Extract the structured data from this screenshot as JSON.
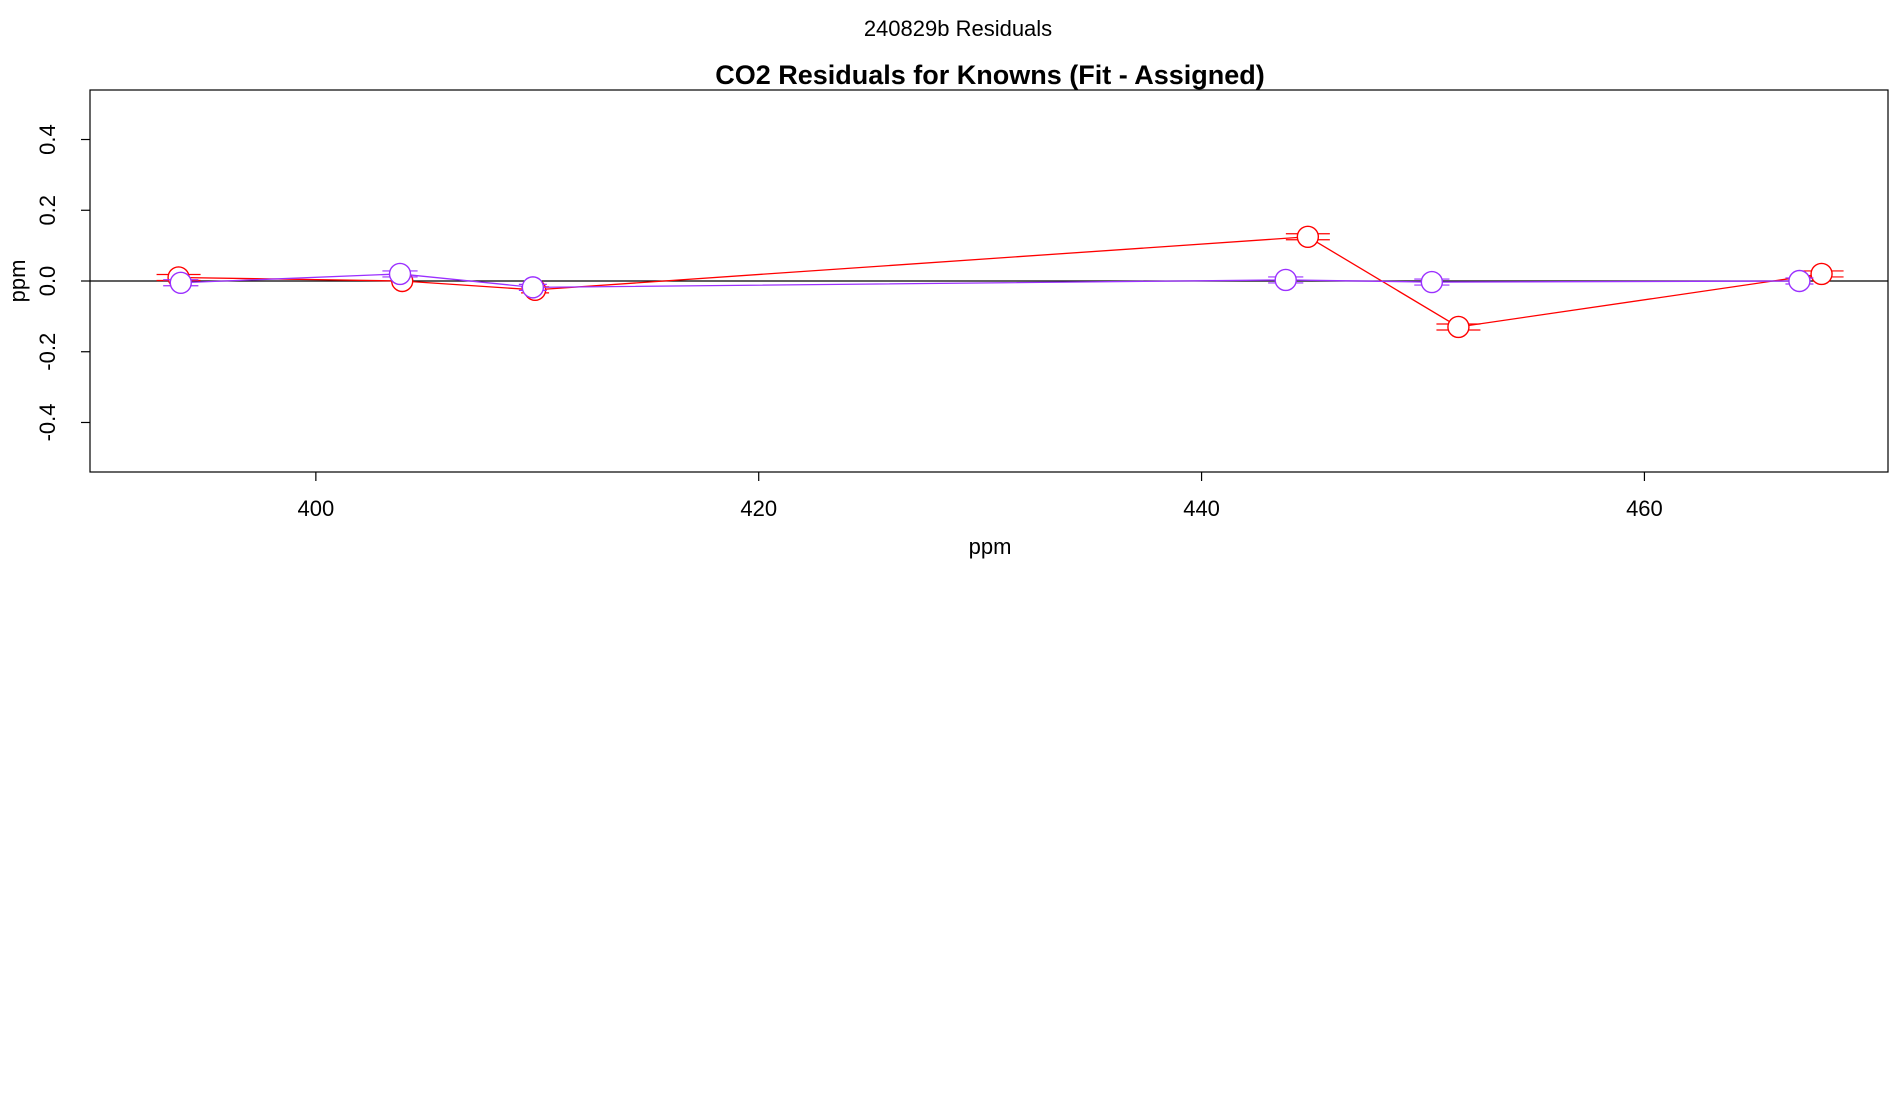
{
  "page": {
    "suptitle": "240829b  Residuals"
  },
  "chart_data": {
    "type": "line",
    "title": "CO2 Residuals for Knowns (Fit - Assigned)",
    "xlabel": "ppm",
    "ylabel": "ppm",
    "xlim": [
      389.8,
      471.0
    ],
    "ylim": [
      -0.54,
      0.54
    ],
    "x_ticks": [
      400,
      420,
      440,
      460
    ],
    "y_ticks": [
      -0.4,
      -0.2,
      0.0,
      0.2,
      0.4
    ],
    "y_tick_labels": [
      "-0.4",
      "-0.2",
      "0.0",
      "0.2",
      "0.4"
    ],
    "x_tick_labels": [
      "400",
      "420",
      "440",
      "460"
    ],
    "zero_line": 0.0,
    "grid": false,
    "legend": "none",
    "series": [
      {
        "color": "#ff0000",
        "points": [
          {
            "x": 393.8,
            "y": 0.01,
            "err": 1.0
          },
          {
            "x": 403.9,
            "y": 0.0,
            "err": 0.0
          },
          {
            "x": 409.9,
            "y": -0.025,
            "err": 0.6
          },
          {
            "x": 444.8,
            "y": 0.125,
            "err": 1.0
          },
          {
            "x": 451.6,
            "y": -0.13,
            "err": 1.0
          },
          {
            "x": 468.0,
            "y": 0.02,
            "err": 1.0
          }
        ]
      },
      {
        "color": "#9b30ff",
        "points": [
          {
            "x": 393.9,
            "y": -0.005,
            "err": 0.8
          },
          {
            "x": 403.8,
            "y": 0.02,
            "err": 0.8
          },
          {
            "x": 409.8,
            "y": -0.018,
            "err": 0.5
          },
          {
            "x": 443.8,
            "y": 0.003,
            "err": 0.8
          },
          {
            "x": 450.4,
            "y": -0.003,
            "err": 0.8
          },
          {
            "x": 467.0,
            "y": 0.0,
            "err": 0.5
          }
        ]
      }
    ]
  }
}
